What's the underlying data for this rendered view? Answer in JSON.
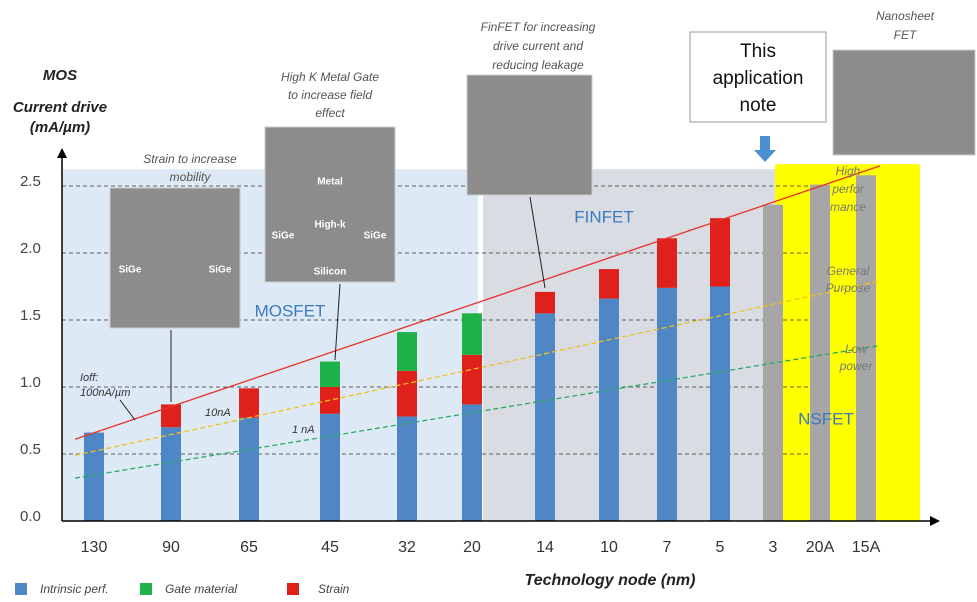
{
  "chart_data": {
    "type": "bar",
    "stacked": true,
    "y_label_lines": [
      "MOS",
      "Current drive",
      "(mA/µm)"
    ],
    "x_label": "Technology node (nm)",
    "categories": [
      "130",
      "90",
      "65",
      "45",
      "32",
      "20",
      "14",
      "10",
      "7",
      "5",
      "3",
      "20A",
      "15A"
    ],
    "ylim": [
      0,
      2.7
    ],
    "yticks": [
      {
        "value": 0,
        "label": "0.0"
      },
      0.5,
      {
        "value": 1,
        "label": "1.0"
      },
      1.5,
      {
        "value": 2,
        "label": "2.0"
      },
      2.5
    ],
    "grid": true,
    "series": [
      {
        "name": "Intrinsic perf.",
        "color": "#4f86c6",
        "values": [
          0.66,
          0.7,
          0.77,
          0.8,
          0.78,
          0.87,
          1.55,
          1.66,
          1.74,
          1.75,
          null,
          null,
          null
        ]
      },
      {
        "name": "Gate material",
        "color": "#1fb24a",
        "values": [
          0,
          0,
          0,
          0.19,
          0.29,
          0.31,
          0,
          0,
          0,
          0,
          null,
          null,
          null
        ]
      },
      {
        "name": "Strain",
        "color": "#e0201b",
        "values": [
          0,
          0.17,
          0.22,
          0.2,
          0.34,
          0.37,
          0.16,
          0.22,
          0.37,
          0.51,
          null,
          null,
          null
        ]
      },
      {
        "color": "#a6a6a6",
        "values": [
          null,
          null,
          null,
          null,
          null,
          null,
          null,
          null,
          null,
          null,
          2.36,
          2.51,
          2.58
        ]
      }
    ],
    "regions": [
      {
        "label": "MOSFET",
        "color": "#dde9f5"
      },
      {
        "label": "FINFET",
        "color": "#d9dce3"
      },
      {
        "label": "NSFET",
        "color": "#ffff00"
      }
    ],
    "trend_lines": [
      {
        "values": [
          0.61,
          2.65
        ],
        "color": "#e8312a"
      },
      {
        "values": [
          0.49,
          1.79
        ],
        "color": "#f0c020"
      },
      {
        "values": [
          0.32,
          1.31
        ],
        "color": "#2aa86a"
      }
    ],
    "annotations": [
      {
        "lines": [
          "Strain to increase",
          "mobility"
        ]
      },
      {
        "lines": [
          "High K Metal Gate",
          "to increase field",
          "effect"
        ]
      },
      {
        "lines": [
          "FinFET for increasing",
          "drive current and",
          "reducing leakage"
        ]
      },
      {
        "lines": [
          "Nanosheet",
          "FET"
        ]
      },
      {
        "lines": [
          "High",
          "perfor",
          "mance"
        ]
      },
      {
        "lines": [
          "General",
          "Purpose"
        ]
      },
      {
        "lines": [
          "Low",
          "power"
        ]
      },
      {
        "lines": [
          "Ioff:",
          "100nA/µm"
        ]
      },
      {
        "lines": [
          "10nA"
        ]
      },
      {
        "lines": [
          "1 nA"
        ]
      }
    ],
    "note_lines": [
      "This",
      "application",
      "note"
    ],
    "photo_labels": [
      "SiGe",
      "SiGe",
      "Metal",
      "High-k",
      "SiGe",
      "SiGe",
      "Silicon"
    ]
  }
}
